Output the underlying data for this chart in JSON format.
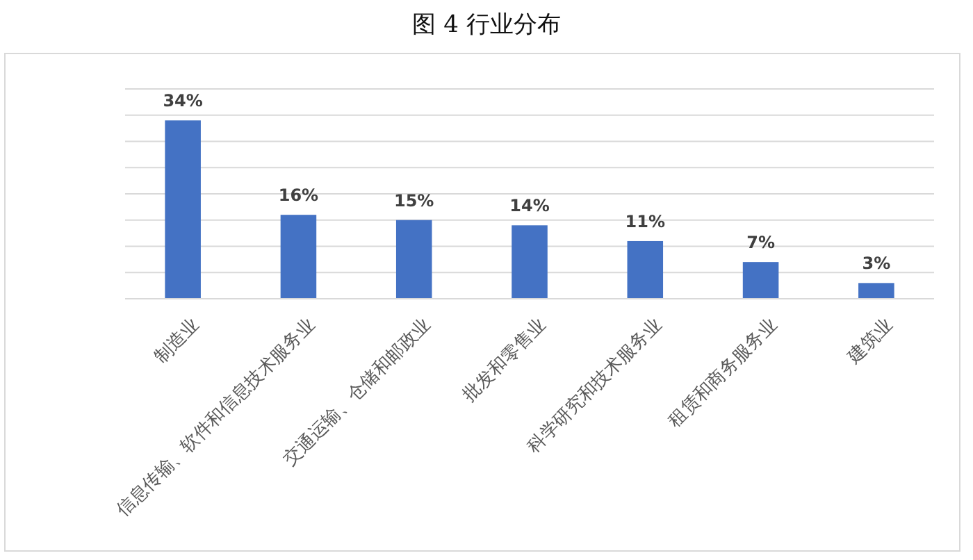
{
  "chart_data": {
    "type": "bar",
    "title": "图 4 行业分布",
    "categories": [
      "制造业",
      "信息传输、软件和信息技术服务业",
      "交通运输、仓储和邮政业",
      "批发和零售业",
      "科学研究和技术服务业",
      "租赁和商务服务业",
      "建筑业"
    ],
    "values": [
      34,
      16,
      15,
      14,
      11,
      7,
      3
    ],
    "value_labels": [
      "34%",
      "16%",
      "15%",
      "14%",
      "11%",
      "7%",
      "3%"
    ],
    "color": "#4472c4",
    "ylim": [
      0,
      40
    ],
    "yticks": [
      {
        "value": 0,
        "label": null
      },
      {
        "value": 5,
        "label": null
      },
      {
        "value": 10,
        "label": null
      },
      {
        "value": 15,
        "label": null
      },
      {
        "value": 20,
        "label": null
      },
      {
        "value": 25,
        "label": null
      },
      {
        "value": 30,
        "label": null
      },
      {
        "value": 35,
        "label": null
      },
      {
        "value": 40,
        "label": null
      }
    ],
    "grid": "y",
    "tick_labels": "x"
  }
}
